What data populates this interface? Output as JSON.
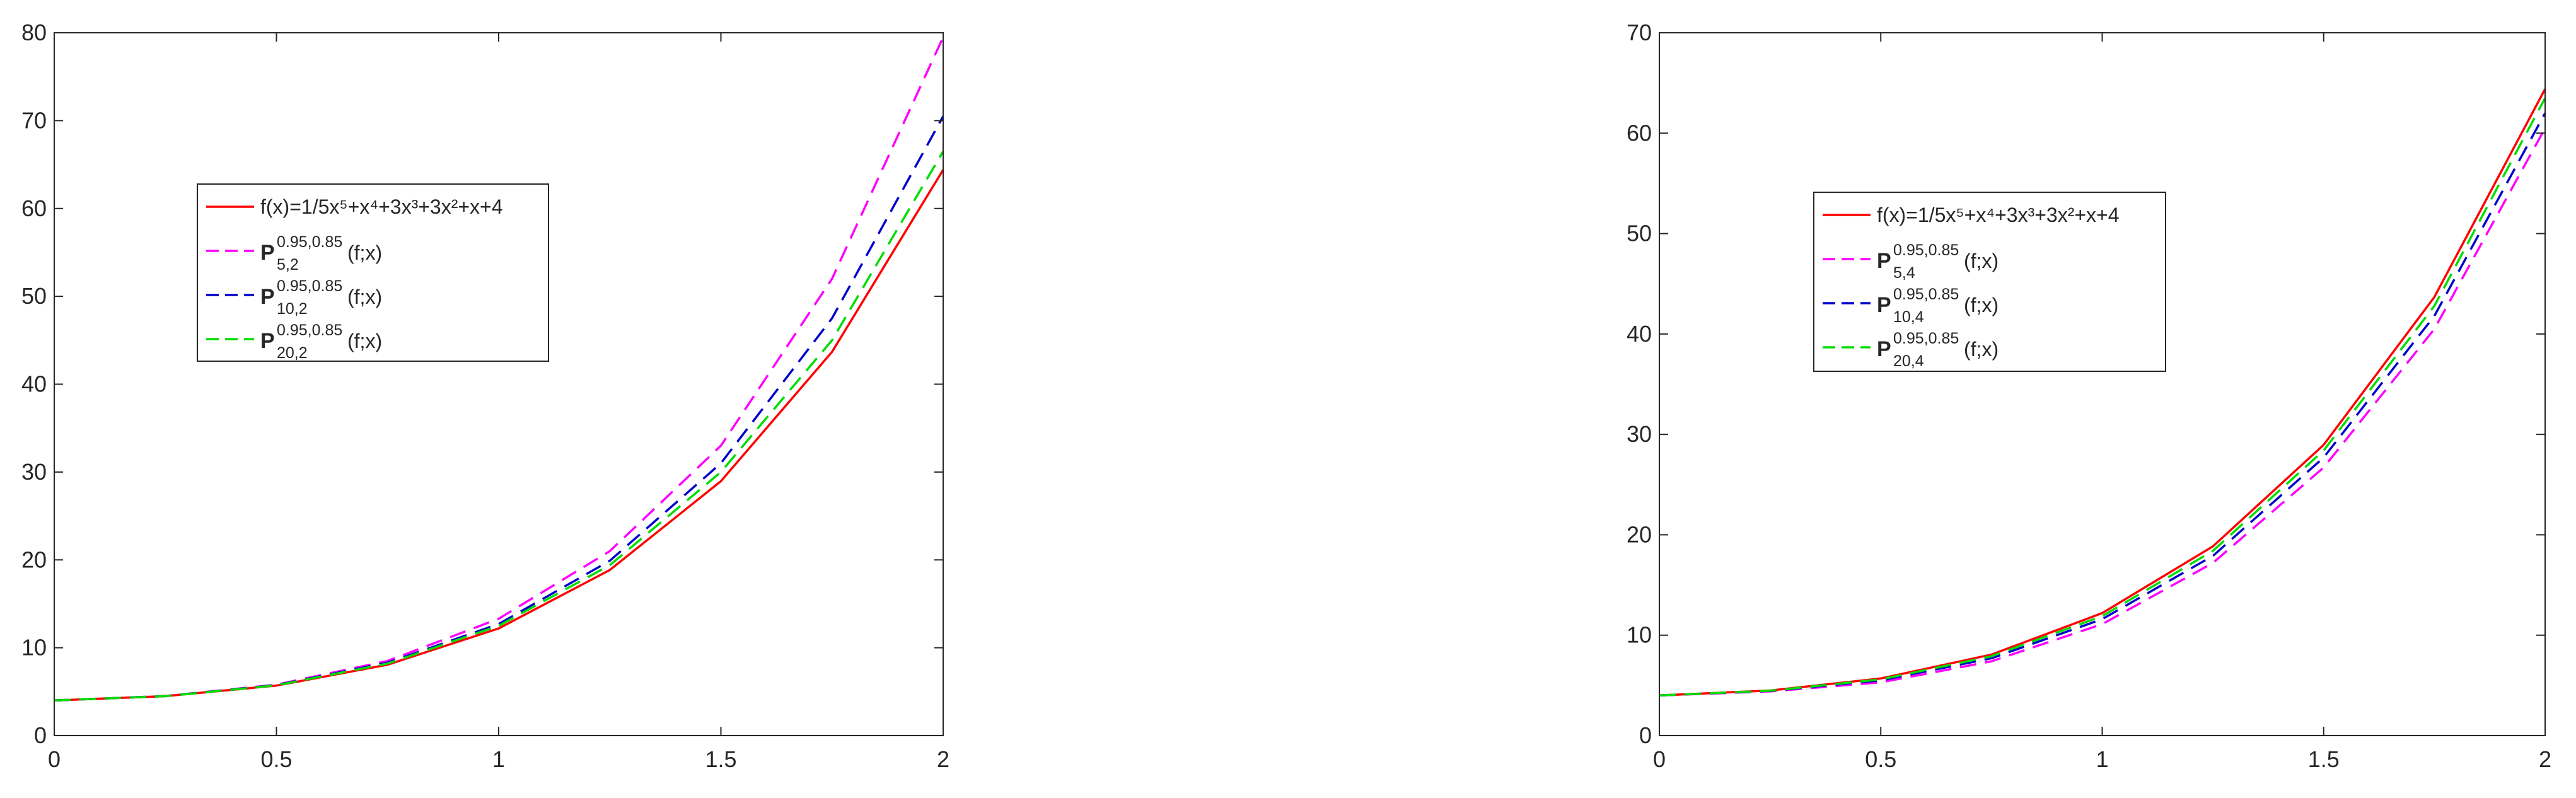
{
  "chart_data": [
    {
      "type": "line",
      "x": [
        0,
        0.25,
        0.5,
        0.75,
        1,
        1.25,
        1.5,
        1.75,
        2
      ],
      "series": [
        {
          "name": "f(x)=1/5x⁵+x⁴+3x³+3x²+x+4",
          "color": "#ff0000",
          "dash": false,
          "values": [
            4,
            4.49,
            5.69,
            8.07,
            12.2,
            18.85,
            28.96,
            43.68,
            64.4
          ]
        },
        {
          "name": "P",
          "name_sup": "0.95,0.85",
          "name_sub": "5,2",
          "name_suffix": "(f;x)",
          "color": "#ff00ff",
          "dash": true,
          "values": [
            4,
            4.5,
            5.8,
            8.5,
            13.3,
            21,
            33,
            52,
            79.5
          ]
        },
        {
          "name": "P",
          "name_sup": "0.95,0.85",
          "name_sub": "10,2",
          "name_suffix": "(f;x)",
          "color": "#0000cc",
          "dash": true,
          "values": [
            4,
            4.5,
            5.75,
            8.3,
            12.7,
            19.9,
            31,
            47.5,
            70.5
          ]
        },
        {
          "name": "P",
          "name_sup": "0.95,0.85",
          "name_sub": "20,2",
          "name_suffix": "(f;x)",
          "color": "#00dd00",
          "dash": true,
          "values": [
            4,
            4.49,
            5.72,
            8.2,
            12.5,
            19.4,
            30,
            45,
            66.5
          ]
        }
      ],
      "xlim": [
        0,
        2
      ],
      "ylim": [
        0,
        80
      ],
      "xticks": [
        0,
        0.5,
        1,
        1.5,
        2
      ],
      "yticks": [
        0,
        10,
        20,
        30,
        40,
        50,
        60,
        70,
        80
      ],
      "grid": false
    },
    {
      "type": "line",
      "x": [
        0,
        0.25,
        0.5,
        0.75,
        1,
        1.25,
        1.5,
        1.75,
        2
      ],
      "series": [
        {
          "name": "f(x)=1/5x⁵+x⁴+3x³+3x²+x+4",
          "color": "#ff0000",
          "dash": false,
          "values": [
            4,
            4.49,
            5.69,
            8.07,
            12.2,
            18.85,
            28.96,
            43.68,
            64.4
          ]
        },
        {
          "name": "P",
          "name_sup": "0.95,0.85",
          "name_sub": "5,4",
          "name_suffix": "(f;x)",
          "color": "#ff00ff",
          "dash": true,
          "values": [
            4,
            4.4,
            5.3,
            7.4,
            11.1,
            17.2,
            26.7,
            40.5,
            60.5
          ]
        },
        {
          "name": "P",
          "name_sup": "0.95,0.85",
          "name_sub": "10,4",
          "name_suffix": "(f;x)",
          "color": "#0000cc",
          "dash": true,
          "values": [
            4,
            4.45,
            5.5,
            7.7,
            11.6,
            17.9,
            27.7,
            41.8,
            62
          ]
        },
        {
          "name": "P",
          "name_sup": "0.95,0.85",
          "name_sub": "20,4",
          "name_suffix": "(f;x)",
          "color": "#00dd00",
          "dash": true,
          "values": [
            4,
            4.47,
            5.6,
            7.9,
            11.9,
            18.4,
            28.4,
            42.8,
            63.5
          ]
        }
      ],
      "xlim": [
        0,
        2
      ],
      "ylim": [
        0,
        70
      ],
      "xticks": [
        0,
        0.5,
        1,
        1.5,
        2
      ],
      "yticks": [
        0,
        10,
        20,
        30,
        40,
        50,
        60,
        70
      ],
      "grid": false
    }
  ]
}
